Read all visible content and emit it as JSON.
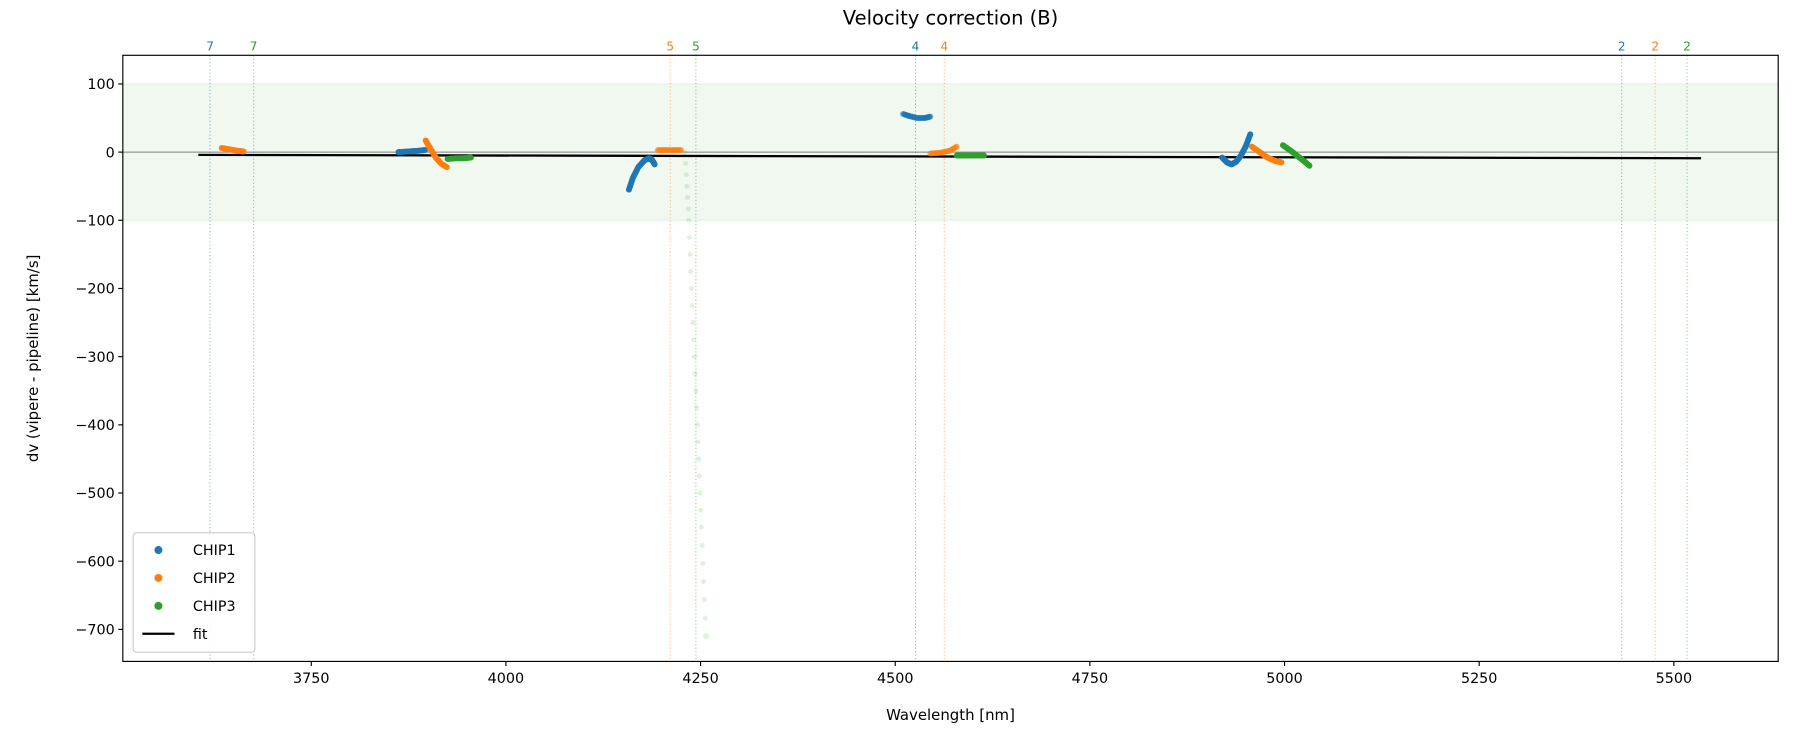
{
  "chart_data": {
    "type": "scatter",
    "title": "Velocity correction (B)",
    "xlabel": "Wavelength [nm]",
    "ylabel": "dv (vipere - pipeline) [km/s]",
    "xlim": [
      3508,
      5634
    ],
    "ylim": [
      -747,
      142
    ],
    "xticks": [
      3750,
      4000,
      4250,
      4500,
      4750,
      5000,
      5250,
      5500
    ],
    "xtick_labels": [
      "3750",
      "4000",
      "4250",
      "4500",
      "4750",
      "5000",
      "5250",
      "5500"
    ],
    "yticks": [
      100,
      0,
      -100,
      -200,
      -300,
      -400,
      -500,
      -600,
      -700
    ],
    "ytick_labels": [
      "100",
      "0",
      "−100",
      "−200",
      "−300",
      "−400",
      "−500",
      "−600",
      "−700"
    ],
    "grid": false,
    "band": {
      "y_range": [
        -100,
        100
      ],
      "color": "#2ca02c"
    },
    "zero_line": 0,
    "legend": {
      "placement": "lower-left",
      "entries": [
        {
          "label": "CHIP1",
          "color": "#1f77b4",
          "kind": "marker"
        },
        {
          "label": "CHIP2",
          "color": "#ff7f0e",
          "kind": "marker"
        },
        {
          "label": "CHIP3",
          "color": "#2ca02c",
          "kind": "marker"
        },
        {
          "label": "fit",
          "color": "#000000",
          "kind": "line"
        }
      ]
    },
    "series": [
      {
        "name": "CHIP1",
        "color": "#1f77b4",
        "segments": [
          {
            "faint": false,
            "points": [
              [
                3862,
                0
              ],
              [
                3875,
                1
              ],
              [
                3888,
                2
              ],
              [
                3896,
                3
              ]
            ]
          },
          {
            "faint": false,
            "points": [
              [
                4158,
                -55
              ],
              [
                4163,
                -38
              ],
              [
                4170,
                -22
              ],
              [
                4178,
                -12
              ],
              [
                4184,
                -9
              ],
              [
                4188,
                -12
              ],
              [
                4191,
                -18
              ]
            ]
          },
          {
            "faint": true,
            "points": [
              [
                4510,
                56
              ],
              [
                4518,
                53
              ],
              [
                4528,
                50
              ],
              [
                4538,
                50
              ],
              [
                4545,
                52
              ]
            ]
          },
          {
            "faint": false,
            "points": [
              [
                4920,
                -8
              ],
              [
                4926,
                -15
              ],
              [
                4932,
                -18
              ],
              [
                4938,
                -14
              ],
              [
                4944,
                -5
              ],
              [
                4950,
                8
              ],
              [
                4956,
                26
              ]
            ]
          }
        ]
      },
      {
        "name": "CHIP2",
        "color": "#ff7f0e",
        "segments": [
          {
            "faint": false,
            "points": [
              [
                3635,
                6
              ],
              [
                3645,
                4
              ],
              [
                3655,
                2
              ],
              [
                3663,
                1
              ]
            ]
          },
          {
            "faint": false,
            "points": [
              [
                3897,
                17
              ],
              [
                3903,
                5
              ],
              [
                3910,
                -8
              ],
              [
                3917,
                -17
              ],
              [
                3924,
                -22
              ]
            ]
          },
          {
            "faint": true,
            "points": [
              [
                4195,
                3
              ],
              [
                4205,
                3
              ],
              [
                4215,
                3
              ],
              [
                4225,
                3
              ]
            ]
          },
          {
            "faint": true,
            "points": [
              [
                4545,
                -2
              ],
              [
                4558,
                -1
              ],
              [
                4570,
                2
              ],
              [
                4579,
                8
              ]
            ]
          },
          {
            "faint": false,
            "points": [
              [
                4958,
                8
              ],
              [
                4968,
                0
              ],
              [
                4978,
                -8
              ],
              [
                4988,
                -13
              ],
              [
                4996,
                -15
              ]
            ]
          }
        ]
      },
      {
        "name": "CHIP3",
        "color": "#2ca02c",
        "segments": [
          {
            "faint": false,
            "points": [
              [
                3925,
                -10
              ],
              [
                3935,
                -9
              ],
              [
                3945,
                -9
              ],
              [
                3955,
                -8
              ]
            ]
          },
          {
            "faint": "very",
            "points": [
              [
                4230,
                0
              ],
              [
                4235,
                -100
              ],
              [
                4240,
                -250
              ],
              [
                4246,
                -400
              ],
              [
                4251,
                -550
              ],
              [
                4257,
                -710
              ]
            ]
          },
          {
            "faint": false,
            "points": [
              [
                4579,
                -5
              ],
              [
                4595,
                -5
              ],
              [
                4614,
                -5
              ]
            ]
          },
          {
            "faint": false,
            "points": [
              [
                4998,
                10
              ],
              [
                5008,
                2
              ],
              [
                5018,
                -7
              ],
              [
                5026,
                -14
              ],
              [
                5032,
                -20
              ]
            ]
          }
        ]
      }
    ],
    "fit": {
      "name": "fit",
      "points": [
        [
          3605,
          -4
        ],
        [
          5535,
          -9
        ]
      ]
    },
    "order_markers": [
      {
        "x": 3620,
        "label": "7",
        "color": "#1f77b4"
      },
      {
        "x": 3676,
        "label": "7",
        "color": "#2ca02c"
      },
      {
        "x": 4211,
        "label": "5",
        "color": "#ff7f0e"
      },
      {
        "x": 4244,
        "label": "5",
        "color": "#2ca02c"
      },
      {
        "x": 4526,
        "label": "4",
        "color": "#1f77b4"
      },
      {
        "x": 4563,
        "label": "4",
        "color": "#ff7f0e"
      },
      {
        "x": 5433,
        "label": "2",
        "color": "#1f77b4"
      },
      {
        "x": 5476,
        "label": "2",
        "color": "#ff7f0e"
      },
      {
        "x": 5517,
        "label": "2",
        "color": "#2ca02c"
      }
    ]
  }
}
